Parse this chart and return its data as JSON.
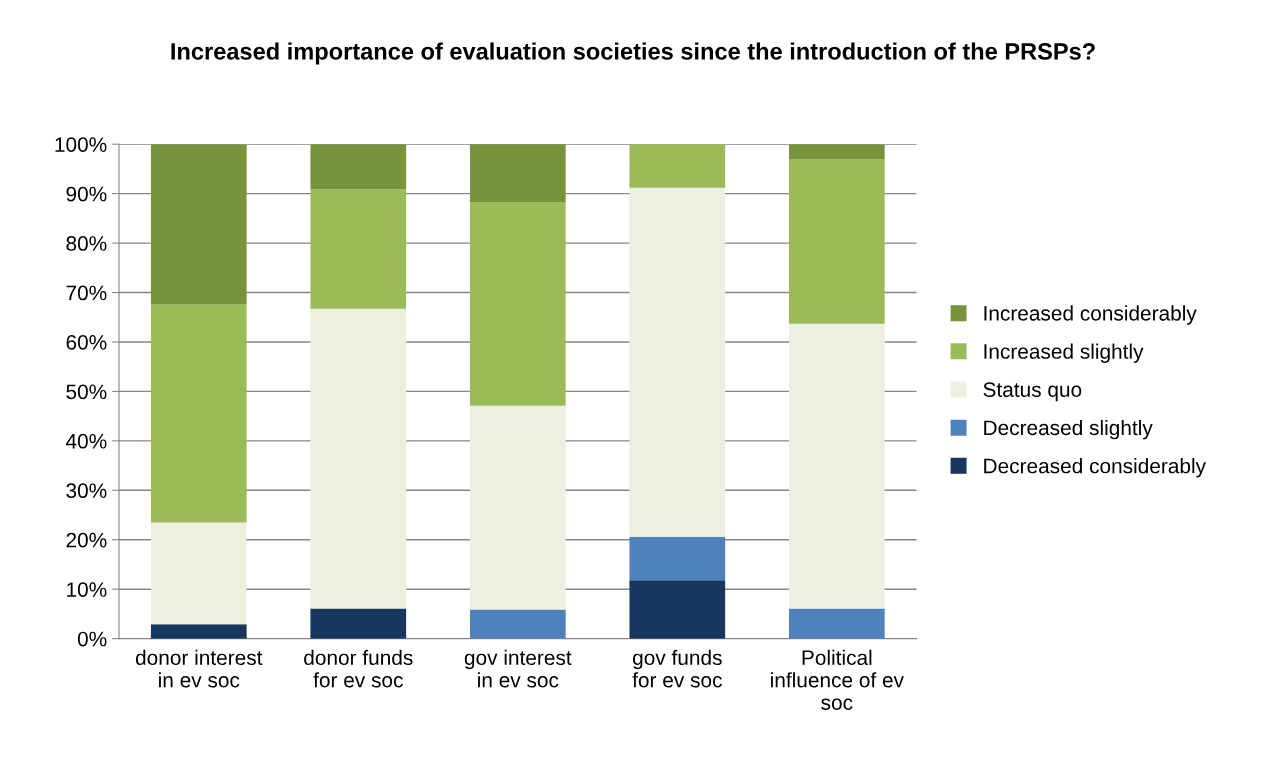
{
  "chart_data": {
    "type": "bar",
    "title": "Increased importance of evaluation societies since the introduction of the PRSPs?",
    "categories": [
      "donor interest\nin ev soc",
      "donor funds\nfor ev soc",
      "gov interest\nin ev soc",
      "gov funds\nfor ev soc",
      "Political\ninfluence of ev\nsoc"
    ],
    "stacked": true,
    "series": [
      {
        "name": "Decreased considerably",
        "color": "#17375e",
        "values": [
          2.9,
          6.1,
          0,
          11.8,
          0
        ]
      },
      {
        "name": "Decreased slightly",
        "color": "#4f81bd",
        "values": [
          0,
          0,
          5.9,
          8.8,
          6.1
        ]
      },
      {
        "name": "Status quo",
        "color": "#ebf1de",
        "values": [
          20.6,
          60.6,
          41.2,
          70.6,
          57.6
        ]
      },
      {
        "name": "Increased slightly",
        "color": "#9bbb59",
        "values": [
          44.1,
          24.2,
          41.2,
          8.8,
          33.3
        ]
      },
      {
        "name": "Increased considerably",
        "color": "#77933c",
        "values": [
          32.4,
          9.1,
          11.8,
          0,
          3.0
        ]
      }
    ],
    "ylim": [
      0,
      100
    ],
    "yticks": [
      {
        "value": 0,
        "label": "0%"
      },
      {
        "value": 10,
        "label": "10%"
      },
      {
        "value": 20,
        "label": "20%"
      },
      {
        "value": 30,
        "label": "30%"
      },
      {
        "value": 40,
        "label": "40%"
      },
      {
        "value": 50,
        "label": "50%"
      },
      {
        "value": 60,
        "label": "60%"
      },
      {
        "value": 70,
        "label": "70%"
      },
      {
        "value": 80,
        "label": "80%"
      },
      {
        "value": 90,
        "label": "90%"
      },
      {
        "value": 100,
        "label": "100%"
      }
    ],
    "grid": "y",
    "legend": "right"
  }
}
